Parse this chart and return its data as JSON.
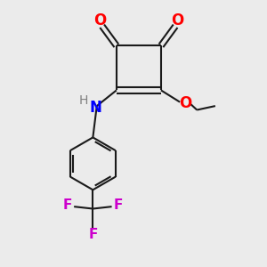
{
  "bg_color": "#ebebeb",
  "bond_color": "#1a1a1a",
  "oxygen_color": "#ff0000",
  "nitrogen_color": "#0000ff",
  "fluorine_color": "#cc00cc",
  "hydrogen_color": "#808080",
  "line_width": 1.5,
  "figsize": [
    3.0,
    3.0
  ],
  "dpi": 100,
  "xlim": [
    0,
    10
  ],
  "ylim": [
    0,
    10
  ]
}
